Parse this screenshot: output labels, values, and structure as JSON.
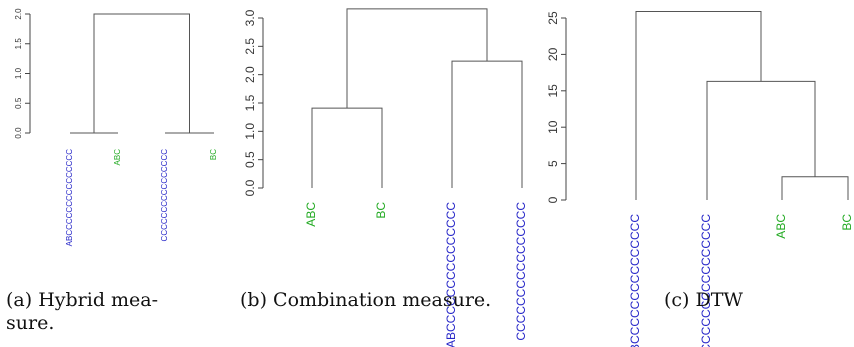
{
  "chart_data": [
    {
      "type": "dendrogram",
      "ylim": [
        0,
        2
      ],
      "yticks": [
        0.0,
        0.5,
        1.0,
        1.5,
        2.0
      ],
      "leaves": [
        "ABCCCCCCCCCCCCCCC",
        "ABC",
        "CCCCCCCCCCCCCCCC",
        "BC"
      ],
      "leaf_colors": [
        "#2626c8",
        "#22aa22",
        "#2626c8",
        "#22aa22"
      ],
      "merges": [
        {
          "left": 0,
          "right": 1,
          "height": 0.0
        },
        {
          "left": 2,
          "right": 3,
          "height": 0.0
        },
        {
          "left": 4,
          "right": 5,
          "height": 2.0
        }
      ],
      "caption_lines": [
        "(a)   Hybrid   mea-",
        "sure."
      ]
    },
    {
      "type": "dendrogram",
      "ylim": [
        0,
        3
      ],
      "yticks": [
        0.0,
        0.5,
        1.0,
        1.5,
        2.0,
        2.5,
        3.0
      ],
      "leaves": [
        "ABC",
        "BC",
        "ABCCCCCCCCCCCCCCC",
        "CCCCCCCCCCCCCCCC"
      ],
      "leaf_colors": [
        "#22aa22",
        "#22aa22",
        "#2626c8",
        "#2626c8"
      ],
      "merges": [
        {
          "left": 0,
          "right": 1,
          "height": 1.41
        },
        {
          "left": 2,
          "right": 3,
          "height": 2.24
        },
        {
          "left": 4,
          "right": 5,
          "height": 3.16
        }
      ],
      "caption_lines": [
        "(b) Combination measure."
      ]
    },
    {
      "type": "dendrogram",
      "ylim": [
        0,
        25
      ],
      "yticks": [
        0,
        5,
        10,
        15,
        20,
        25
      ],
      "leaves": [
        "ABCCCCCCCCCCCCCCC",
        "CCCCCCCCCCCCCCCC",
        "ABC",
        "BC"
      ],
      "leaf_colors": [
        "#2626c8",
        "#2626c8",
        "#22aa22",
        "#22aa22"
      ],
      "merges": [
        {
          "left": 2,
          "right": 3,
          "height": 3.2
        },
        {
          "left": 1,
          "right": 4,
          "height": 16.3
        },
        {
          "left": 0,
          "right": 5,
          "height": 25.9
        }
      ],
      "caption_lines": [
        "(c) DTW"
      ]
    }
  ]
}
